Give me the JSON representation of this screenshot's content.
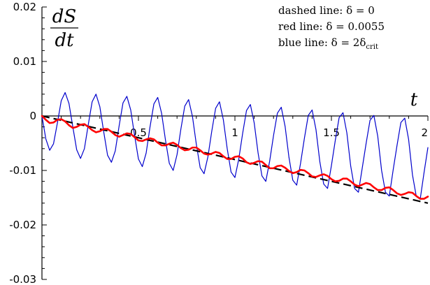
{
  "chart_data": {
    "type": "line",
    "xlabel": "t",
    "ylabel": {
      "numerator": "dS",
      "denominator": "dt"
    },
    "xlim": [
      0,
      2
    ],
    "ylim": [
      -0.03,
      0.02
    ],
    "grid": false,
    "legend_position": "top-right",
    "legend": [
      {
        "text": "dashed line: δ = 0"
      },
      {
        "text": "red line: δ = 0.0055"
      },
      {
        "text": "blue line: δ = 2δ",
        "subscript": "crit"
      }
    ],
    "x_ticks": [
      {
        "value": 0.5,
        "label": "0.5"
      },
      {
        "value": 1,
        "label": "1"
      },
      {
        "value": 1.5,
        "label": "1.5"
      },
      {
        "value": 2,
        "label": "2"
      }
    ],
    "y_ticks": [
      {
        "value": 0.02,
        "label": "0.02"
      },
      {
        "value": 0.01,
        "label": "0.01"
      },
      {
        "value": 0,
        "label": "0"
      },
      {
        "value": -0.01,
        "label": "-0.01"
      },
      {
        "value": -0.02,
        "label": "-0.02"
      },
      {
        "value": -0.03,
        "label": "-0.03"
      }
    ],
    "series": [
      {
        "style": "dashed",
        "color": "#000000",
        "x": [
          0,
          0.5,
          1,
          1.5,
          2
        ],
        "y": [
          0,
          -0.004,
          -0.008,
          -0.012,
          -0.016
        ]
      },
      {
        "style": "solid",
        "color": "#ff0000",
        "x": [
          0,
          0.02,
          0.04,
          0.06,
          0.08,
          0.1,
          0.12,
          0.14,
          0.16,
          0.18,
          0.2,
          0.22,
          0.24,
          0.26,
          0.28,
          0.3,
          0.32,
          0.34,
          0.36,
          0.38,
          0.4,
          0.42,
          0.44,
          0.46,
          0.48,
          0.5,
          0.52,
          0.54,
          0.56,
          0.58,
          0.6,
          0.62,
          0.64,
          0.66,
          0.68,
          0.7,
          0.72,
          0.74,
          0.76,
          0.78,
          0.8,
          0.82,
          0.84,
          0.86,
          0.88,
          0.9,
          0.92,
          0.94,
          0.96,
          0.98,
          1,
          1.02,
          1.04,
          1.06,
          1.08,
          1.1,
          1.12,
          1.14,
          1.16,
          1.18,
          1.2,
          1.22,
          1.24,
          1.26,
          1.28,
          1.3,
          1.32,
          1.34,
          1.36,
          1.38,
          1.4,
          1.42,
          1.44,
          1.46,
          1.48,
          1.5,
          1.52,
          1.54,
          1.56,
          1.58,
          1.6,
          1.62,
          1.64,
          1.66,
          1.68,
          1.7,
          1.72,
          1.74,
          1.76,
          1.78,
          1.8,
          1.82,
          1.84,
          1.86,
          1.88,
          1.9,
          1.92,
          1.94,
          1.96,
          1.98,
          2
        ],
        "y": [
          0,
          -0.0007,
          -0.0013,
          -0.0012,
          -0.0007,
          -0.0006,
          -0.001,
          -0.0017,
          -0.0022,
          -0.002,
          -0.0016,
          -0.0015,
          -0.002,
          -0.0026,
          -0.003,
          -0.0028,
          -0.0024,
          -0.0024,
          -0.0029,
          -0.0035,
          -0.0038,
          -0.0035,
          -0.0032,
          -0.0033,
          -0.0039,
          -0.0045,
          -0.0046,
          -0.0043,
          -0.0041,
          -0.0043,
          -0.0049,
          -0.0054,
          -0.0054,
          -0.0051,
          -0.0049,
          -0.0053,
          -0.0059,
          -0.0063,
          -0.0062,
          -0.0058,
          -0.0058,
          -0.0063,
          -0.0069,
          -0.0071,
          -0.0069,
          -0.0066,
          -0.0068,
          -0.0074,
          -0.0079,
          -0.0079,
          -0.0075,
          -0.0074,
          -0.0078,
          -0.0085,
          -0.0088,
          -0.0086,
          -0.0083,
          -0.0084,
          -0.009,
          -0.0096,
          -0.0096,
          -0.0092,
          -0.0091,
          -0.0095,
          -0.0101,
          -0.0105,
          -0.0103,
          -0.0099,
          -0.01,
          -0.0105,
          -0.0111,
          -0.0112,
          -0.0109,
          -0.0107,
          -0.011,
          -0.0116,
          -0.012,
          -0.0119,
          -0.0115,
          -0.0115,
          -0.012,
          -0.0126,
          -0.0129,
          -0.0126,
          -0.0123,
          -0.0125,
          -0.0131,
          -0.0136,
          -0.0136,
          -0.0132,
          -0.0131,
          -0.0136,
          -0.0142,
          -0.0145,
          -0.0143,
          -0.014,
          -0.0141,
          -0.0147,
          -0.0152,
          -0.0152,
          -0.0148
        ]
      },
      {
        "style": "solid",
        "color": "#0000cc",
        "x": [
          0,
          0.02,
          0.04,
          0.06,
          0.08,
          0.1,
          0.12,
          0.14,
          0.16,
          0.18,
          0.2,
          0.22,
          0.24,
          0.26,
          0.28,
          0.3,
          0.32,
          0.34,
          0.36,
          0.38,
          0.4,
          0.42,
          0.44,
          0.46,
          0.48,
          0.5,
          0.52,
          0.54,
          0.56,
          0.58,
          0.6,
          0.62,
          0.64,
          0.66,
          0.68,
          0.7,
          0.72,
          0.74,
          0.76,
          0.78,
          0.8,
          0.82,
          0.84,
          0.86,
          0.88,
          0.9,
          0.92,
          0.94,
          0.96,
          0.98,
          1,
          1.02,
          1.04,
          1.06,
          1.08,
          1.1,
          1.12,
          1.14,
          1.16,
          1.18,
          1.2,
          1.22,
          1.24,
          1.26,
          1.28,
          1.3,
          1.32,
          1.34,
          1.36,
          1.38,
          1.4,
          1.42,
          1.44,
          1.46,
          1.48,
          1.5,
          1.52,
          1.54,
          1.56,
          1.58,
          1.6,
          1.62,
          1.64,
          1.66,
          1.68,
          1.7,
          1.72,
          1.74,
          1.76,
          1.78,
          1.8,
          1.82,
          1.84,
          1.86,
          1.88,
          1.9,
          1.92,
          1.94,
          1.96,
          1.98,
          2
        ],
        "y": [
          0,
          -0.0042,
          -0.0063,
          -0.0051,
          -0.0013,
          0.0028,
          0.0043,
          0.0023,
          -0.002,
          -0.0062,
          -0.0078,
          -0.006,
          -0.0016,
          0.0026,
          0.004,
          0.0017,
          -0.0029,
          -0.0072,
          -0.0085,
          -0.0064,
          -0.0018,
          0.0024,
          0.0036,
          0.0011,
          -0.0036,
          -0.0079,
          -0.0093,
          -0.0068,
          -0.002,
          0.0022,
          0.0034,
          0.0005,
          -0.0044,
          -0.0087,
          -0.01,
          -0.0071,
          -0.0024,
          0.0018,
          0.003,
          -0.0001,
          -0.0052,
          -0.0095,
          -0.0106,
          -0.0075,
          -0.0028,
          0.0014,
          0.0026,
          -0.0007,
          -0.006,
          -0.0103,
          -0.0113,
          -0.0079,
          -0.0032,
          0.001,
          0.0021,
          -0.0013,
          -0.0068,
          -0.011,
          -0.012,
          -0.0083,
          -0.0036,
          0.0005,
          0.0016,
          -0.0019,
          -0.0076,
          -0.0118,
          -0.0127,
          -0.0087,
          -0.0041,
          0.0001,
          0.0011,
          -0.0025,
          -0.0084,
          -0.0125,
          -0.0133,
          -0.0091,
          -0.0045,
          -0.0003,
          0.0006,
          -0.0031,
          -0.0092,
          -0.0133,
          -0.014,
          -0.0095,
          -0.005,
          -0.0008,
          0.0001,
          -0.0037,
          -0.01,
          -0.014,
          -0.0147,
          -0.0099,
          -0.0054,
          -0.0012,
          -0.0004,
          -0.0043,
          -0.0108,
          -0.0148,
          -0.0153,
          -0.0104,
          -0.0058
        ]
      }
    ]
  }
}
